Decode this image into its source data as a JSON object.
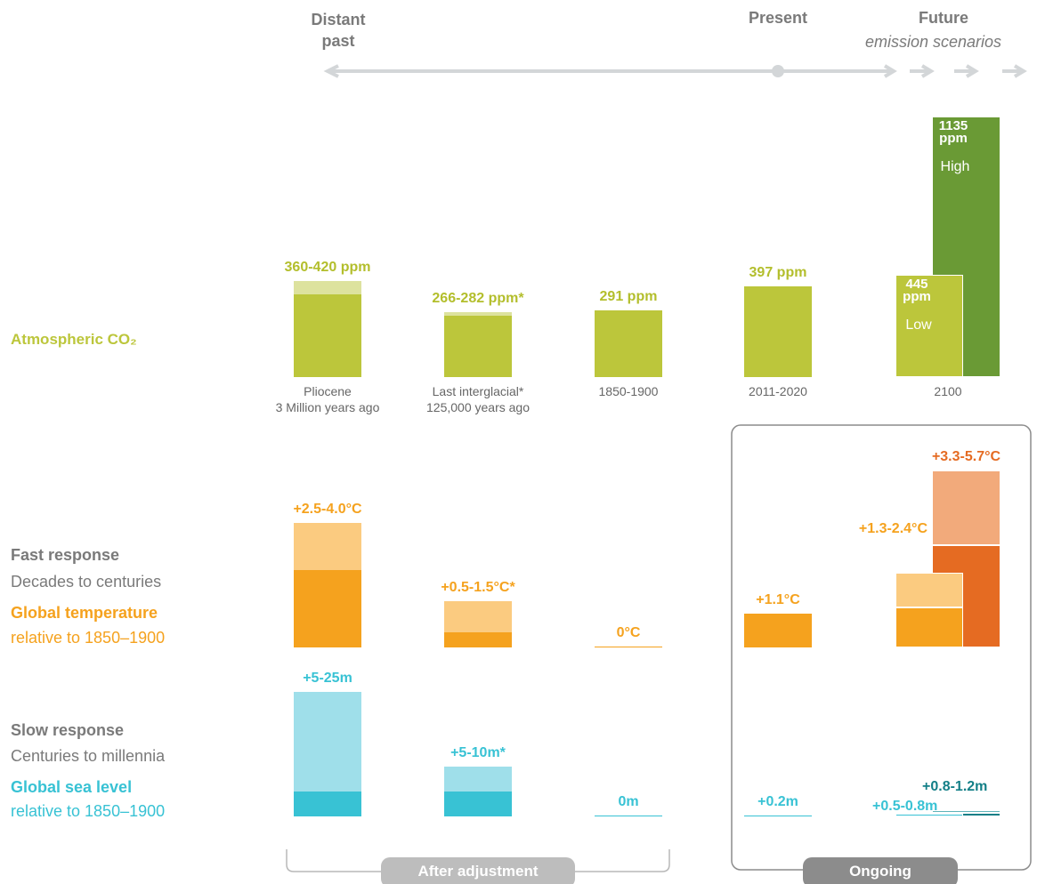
{
  "timeline": {
    "past": "Distant past",
    "present": "Present",
    "future": "Future",
    "future_note": "emission scenarios"
  },
  "periods": [
    {
      "name": "Pliocene",
      "detail": "3 Million years ago"
    },
    {
      "name": "Last interglacial*",
      "detail": "125,000 years ago"
    },
    {
      "name": "1850-1900"
    },
    {
      "name": "2011-2020"
    },
    {
      "name": "2100"
    }
  ],
  "rows": [
    {
      "id": "co2",
      "label": "Atmospheric CO₂",
      "color": "#bcc63b",
      "light_color": "#dde29e",
      "high_color": "#6a9a35",
      "high_light_color": "#a8c47e",
      "items": [
        {
          "label": "360-420 ppm",
          "low": 360,
          "high": 420
        },
        {
          "label": "266-282 ppm*",
          "low": 266,
          "high": 282
        },
        {
          "label": "291 ppm",
          "value": 291
        },
        {
          "label": "397 ppm",
          "value": 397
        },
        {
          "label": "445 ppm",
          "value": 445,
          "scenario": "Low"
        },
        {
          "label": "1135 ppm",
          "value": 1135,
          "scenario": "High"
        }
      ]
    },
    {
      "id": "temp",
      "heading": "Fast response",
      "subheading": "Decades to centuries",
      "label": "Global temperature",
      "note": "relative to 1850–1900",
      "color": "#f5a21e",
      "light_color": "#fbcb80",
      "high_color": "#e56b22",
      "high_light_color": "#f2aa7b",
      "items": [
        {
          "label": "+2.5-4.0°C",
          "low": 2.5,
          "high": 4.0
        },
        {
          "label": "+0.5-1.5°C*",
          "low": 0.5,
          "high": 1.5
        },
        {
          "label": "0°C",
          "value": 0
        },
        {
          "label": "+1.1°C",
          "value": 1.1
        },
        {
          "label": "+1.3-2.4°C",
          "low": 1.3,
          "high": 2.4
        },
        {
          "label": "+3.3-5.7°C",
          "low": 3.3,
          "high": 5.7
        }
      ]
    },
    {
      "id": "sea",
      "heading": "Slow response",
      "subheading": "Centuries to millennia",
      "label": "Global sea level",
      "note": "relative to 1850–1900",
      "color": "#38c2d4",
      "light_color": "#9fdfea",
      "high_color": "#137f87",
      "high_light_color": "#5fb3b8",
      "items": [
        {
          "label": "+5-25m",
          "low": 5,
          "high": 25
        },
        {
          "label": "+5-10m*",
          "low": 5,
          "high": 10
        },
        {
          "label": "0m",
          "value": 0
        },
        {
          "label": "+0.2m",
          "value": 0.2
        },
        {
          "label": "+0.5-0.8m",
          "low": 0.5,
          "high": 0.8
        },
        {
          "label": "+0.8-1.2m",
          "low": 0.8,
          "high": 1.2
        }
      ]
    }
  ],
  "brackets": {
    "adjustment": "After adjustment",
    "ongoing": "Ongoing"
  }
}
